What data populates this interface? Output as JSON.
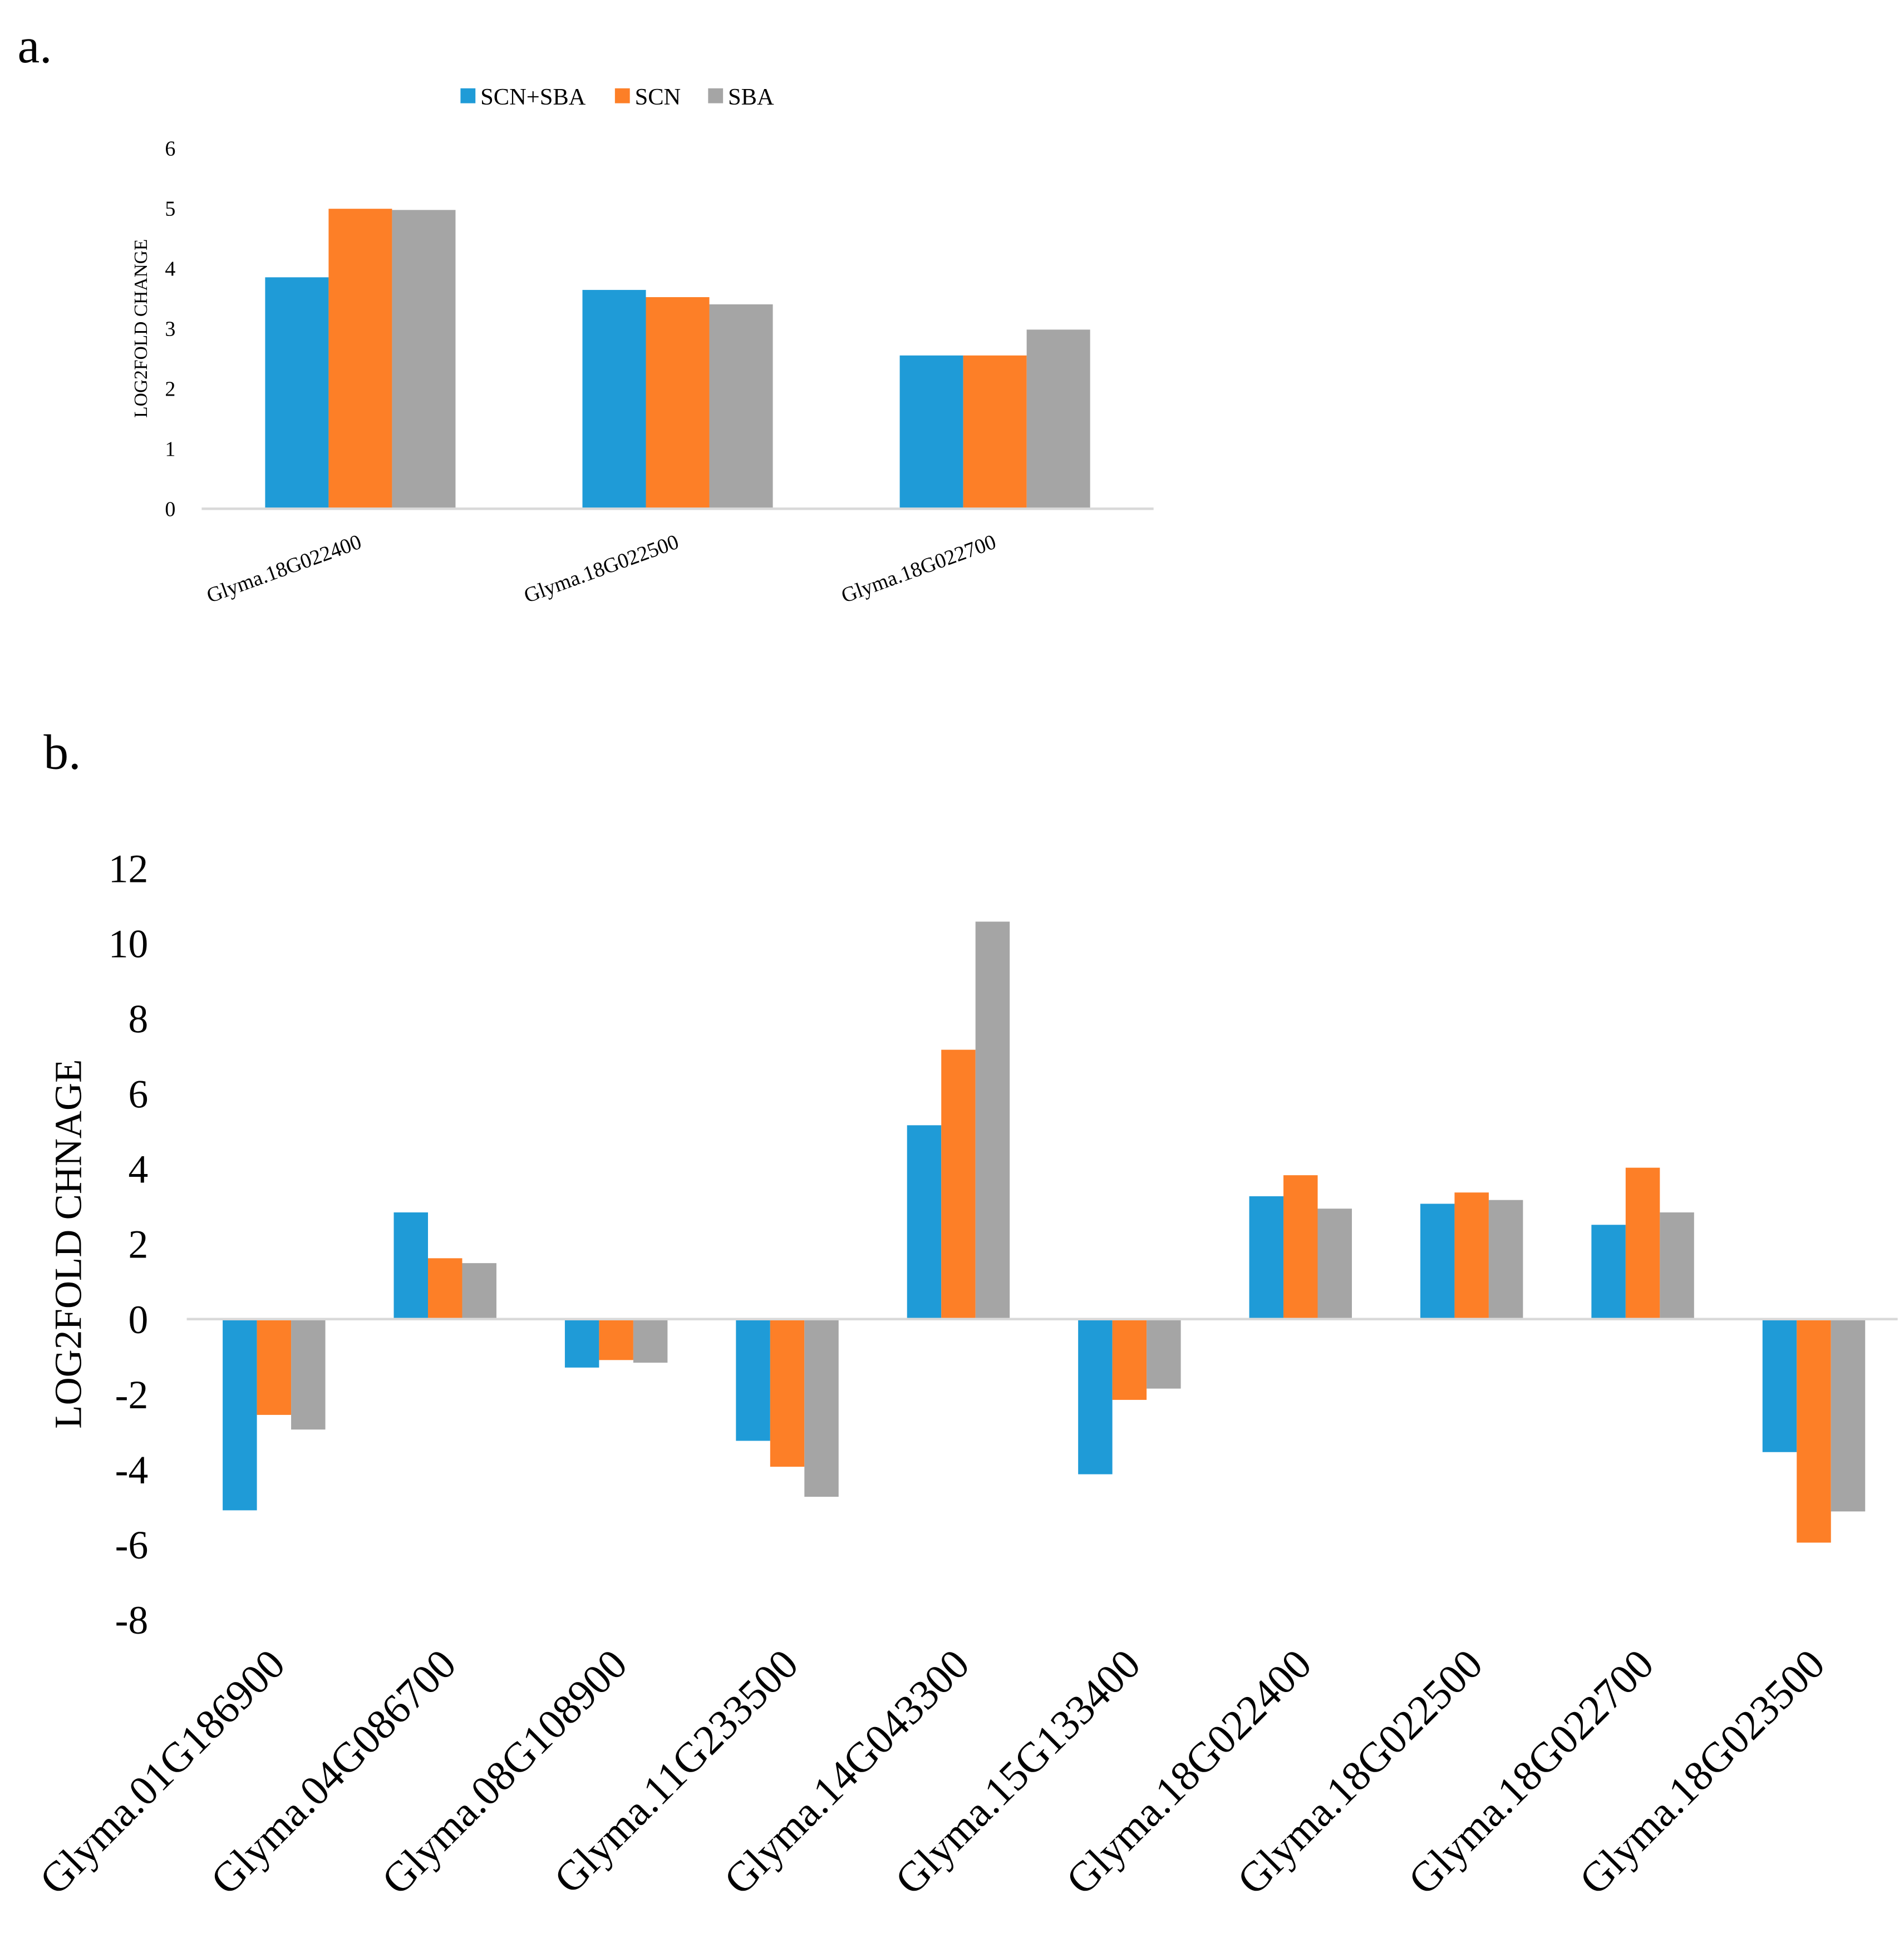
{
  "colors": {
    "SCN+SBA": "#1f9bd7",
    "SCN": "#fd7f27",
    "SBA": "#a5a5a5"
  },
  "chart_data": [
    {
      "panel": "a.",
      "type": "bar",
      "ylabel": "LOG2FOLD CHANGE",
      "ylim": [
        0,
        6
      ],
      "yticks": [
        0,
        1,
        2,
        3,
        4,
        5,
        6
      ],
      "legend": "top",
      "categories": [
        "Glyma.18G022400",
        "Glyma.18G022500",
        "Glyma.18G022700"
      ],
      "series": [
        {
          "name": "SCN+SBA",
          "values": [
            3.85,
            3.64,
            2.55
          ]
        },
        {
          "name": "SCN",
          "values": [
            4.99,
            3.52,
            2.55
          ]
        },
        {
          "name": "SBA",
          "values": [
            4.97,
            3.4,
            2.98
          ]
        }
      ]
    },
    {
      "panel": "b.",
      "type": "bar",
      "ylabel": "LOG2FOLD CHNAGE",
      "ylim": [
        -8,
        12
      ],
      "yticks": [
        -8,
        -6,
        -4,
        -2,
        0,
        2,
        4,
        6,
        8,
        10,
        12
      ],
      "categories": [
        "Glyma.01G186900",
        "Glyma.04G086700",
        "Glyma.08G108900",
        "Glyma.11G233500",
        "Glyma.14G043300",
        "Glyma.15G133400",
        "Glyma.18G022400",
        "Glyma.18G022500",
        "Glyma.18G022700",
        "Glyma.18G023500"
      ],
      "series": [
        {
          "name": "SCN+SBA",
          "values": [
            -5.09,
            2.84,
            -1.29,
            -3.24,
            5.16,
            -4.13,
            3.27,
            3.07,
            2.51,
            -3.54
          ]
        },
        {
          "name": "SCN",
          "values": [
            -2.55,
            1.62,
            -1.09,
            -3.93,
            7.17,
            -2.15,
            3.83,
            3.37,
            4.03,
            -5.95
          ]
        },
        {
          "name": "SBA",
          "values": [
            -2.94,
            1.49,
            -1.16,
            -4.73,
            10.58,
            -1.85,
            2.94,
            3.17,
            2.84,
            -5.12
          ]
        }
      ]
    }
  ]
}
